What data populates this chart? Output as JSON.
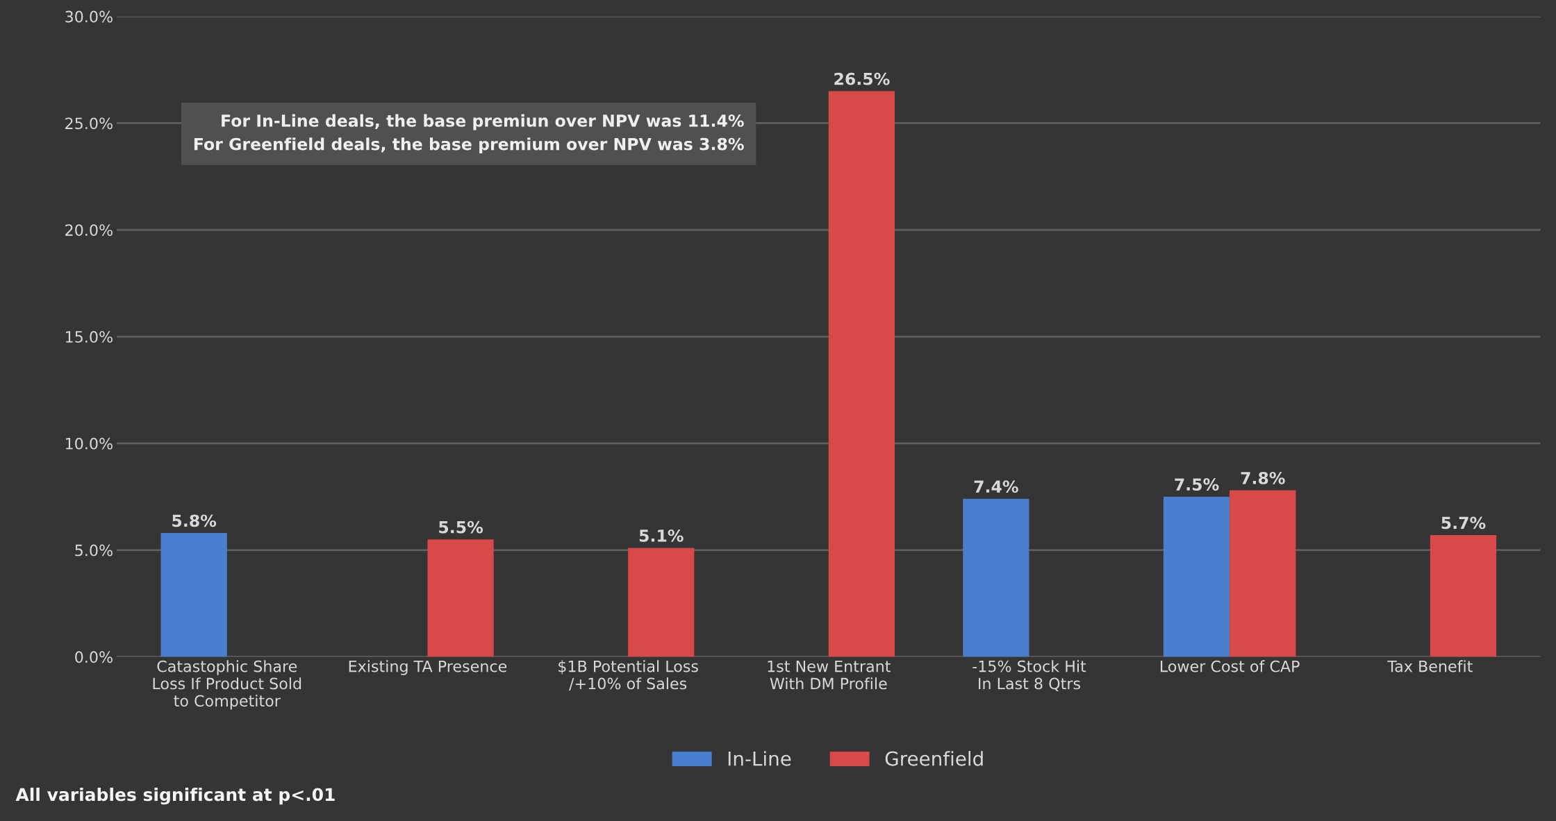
{
  "chart_data": {
    "type": "bar",
    "categories": [
      "Catastophic Share\nLoss If Product Sold\nto Competitor",
      "Existing TA Presence",
      "$1B Potential Loss\n/+10% of Sales",
      "1st New Entrant\nWith DM Profile",
      "-15% Stock Hit\nIn Last 8 Qtrs",
      "Lower Cost of CAP",
      "Tax Benefit"
    ],
    "series": [
      {
        "name": "In-Line",
        "color": "#4a7fd0",
        "values": [
          5.8,
          null,
          null,
          null,
          7.4,
          7.5,
          null
        ],
        "value_labels": [
          "5.8%",
          null,
          null,
          null,
          "7.4%",
          "7.5%",
          null
        ]
      },
      {
        "name": "Greenfield",
        "color": "#d84a4a",
        "values": [
          null,
          5.5,
          5.1,
          26.5,
          null,
          7.8,
          5.7
        ],
        "value_labels": [
          null,
          "5.5%",
          "5.1%",
          "26.5%",
          null,
          "7.8%",
          "5.7%"
        ]
      }
    ],
    "ylim": [
      0,
      30
    ],
    "yticks": [
      {
        "value": 0,
        "label": "0.0%"
      },
      {
        "value": 5,
        "label": "5.0%"
      },
      {
        "value": 10,
        "label": "10.0%"
      },
      {
        "value": 15,
        "label": "15.0%"
      },
      {
        "value": 20,
        "label": "20.0%"
      },
      {
        "value": 25,
        "label": "25.0%"
      },
      {
        "value": 30,
        "label": "30.0%"
      }
    ],
    "grid": "y",
    "legend": "bottom",
    "annotations": [
      "For In-Line deals, the base premiun over NPV was 11.4%\nFor Greenfield deals, the base premium over NPV was 3.8%",
      "All variables significant at p<.01"
    ]
  }
}
